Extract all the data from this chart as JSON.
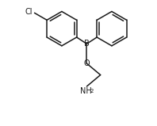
{
  "bg_color": "#ffffff",
  "line_color": "#1a1a1a",
  "line_width": 1.1,
  "font_size_atoms": 7.0,
  "font_size_subscript": 5.0,
  "figsize": [
    1.98,
    1.59
  ],
  "dpi": 100,
  "xlim": [
    -0.9,
    1.85
  ],
  "ylim": [
    -1.55,
    1.25
  ]
}
